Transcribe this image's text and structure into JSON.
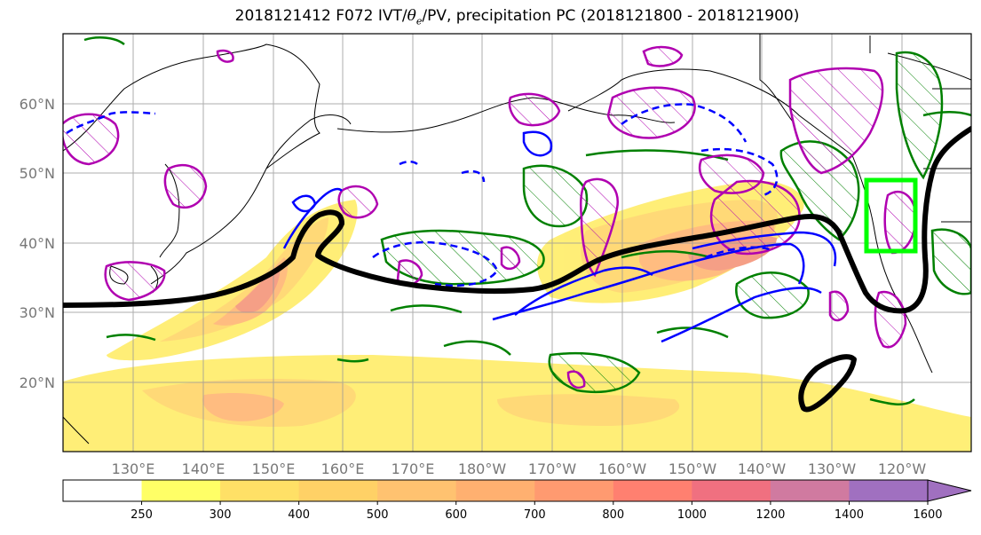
{
  "title": {
    "prefix": "2018121412 F072 IVT/",
    "theta": "θ",
    "sub": "e",
    "suffix": "/PV, precipitation PC (2018121800 - 2018121900)"
  },
  "map": {
    "lon_labels": [
      "130°E",
      "140°E",
      "150°E",
      "160°E",
      "170°E",
      "180°W",
      "170°W",
      "160°W",
      "150°W",
      "140°W",
      "130°W",
      "120°W"
    ],
    "lat_labels": [
      "60°N",
      "50°N",
      "40°N",
      "30°N",
      "20°N"
    ],
    "lon_range_deg": [
      120,
      250
    ],
    "lat_range_deg": [
      10,
      70
    ],
    "grid": true,
    "highlight_box_color": "#00ff00",
    "contour_colors": {
      "ivt_line": "#000000",
      "pv_positive": "#0000ff",
      "theta_e": "#008000",
      "precip_pc": "#b000b0"
    }
  },
  "colorbar": {
    "levels": [
      "250",
      "300",
      "400",
      "500",
      "600",
      "700",
      "800",
      "1000",
      "1200",
      "1400",
      "1600"
    ],
    "colors": [
      "#ffffff",
      "#ffff66",
      "#ffe066",
      "#ffd166",
      "#ffc270",
      "#ffb070",
      "#ff9a70",
      "#ff8070",
      "#f07080",
      "#d07aa0",
      "#a070c0"
    ],
    "extend": "max"
  }
}
